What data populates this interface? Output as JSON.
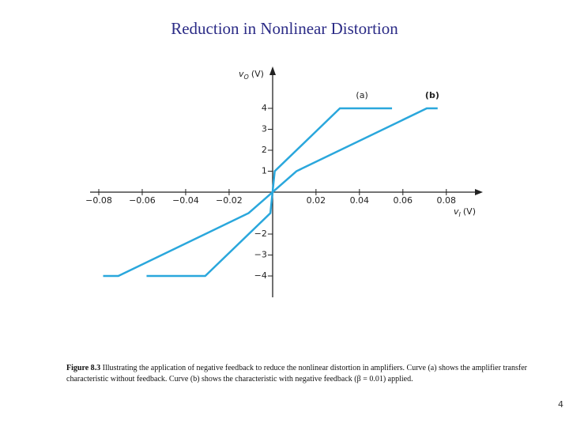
{
  "chart_data": {
    "type": "line",
    "title": "Reduction in Nonlinear Distortion",
    "x_label": {
      "symbol": "v",
      "subscript": "I",
      "unit": "(V)"
    },
    "y_label": {
      "symbol": "v",
      "subscript": "O",
      "unit": "(V)"
    },
    "xlim": [
      -0.084,
      0.095
    ],
    "ylim": [
      -5,
      6
    ],
    "xticks": [
      {
        "value": -0.08,
        "label": "−0.08"
      },
      {
        "value": -0.06,
        "label": "−0.06"
      },
      {
        "value": -0.04,
        "label": "−0.04"
      },
      {
        "value": -0.02,
        "label": "−0.02"
      },
      0.02,
      0.04,
      0.06,
      0.08
    ],
    "yticks": [
      1,
      2,
      3,
      4,
      {
        "value": -2,
        "label": "−2"
      },
      {
        "value": -3,
        "label": "−3"
      },
      {
        "value": -4,
        "label": "−4"
      }
    ],
    "series": [
      {
        "name": "(a)",
        "color": "#2aa7dc",
        "x": [
          -0.058,
          -0.031,
          -0.001,
          0.001,
          0.031,
          0.055
        ],
        "values": [
          -4,
          -4,
          -1,
          1,
          4,
          4
        ]
      },
      {
        "name": "(b)",
        "color": "#2aa7dc",
        "x": [
          -0.078,
          -0.071,
          -0.011,
          0.011,
          0.071,
          0.076
        ],
        "values": [
          -4,
          -4,
          -1,
          1,
          4,
          4
        ]
      }
    ]
  },
  "caption": {
    "label": "Figure 8.3",
    "text": "Illustrating the application of negative feedback to reduce the nonlinear distortion in amplifiers. Curve (a) shows the amplifier transfer characteristic without feedback. Curve (b) shows the characteristic with negative feedback (β = 0.01) applied."
  },
  "page_number": "4"
}
